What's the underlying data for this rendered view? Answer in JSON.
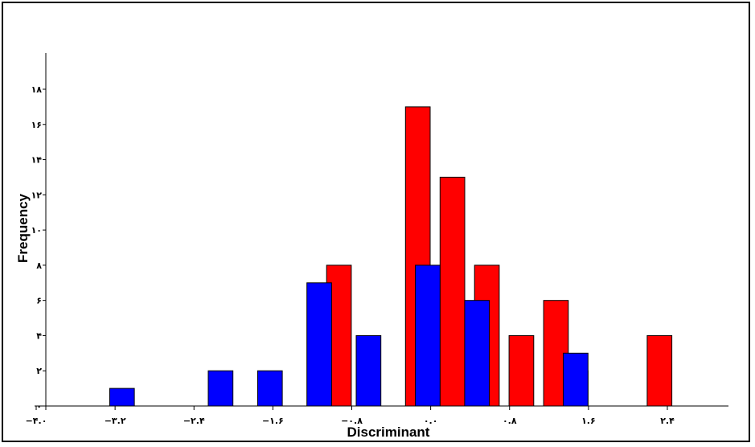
{
  "chart_data": {
    "type": "bar",
    "title": "",
    "xlabel": "Discriminant",
    "ylabel": "Frequency",
    "xlim": [
      -4.0,
      3.4
    ],
    "ylim": [
      0,
      18
    ],
    "x_ticks": [
      -4.0,
      -3.2,
      -2.4,
      -1.6,
      -0.8,
      0.0,
      0.8,
      1.6,
      2.4
    ],
    "x_tick_labels": [
      "−۴.۰",
      "−۳.۲",
      "−۲.۴",
      "−۱.۶",
      "−۰.۸",
      "۰.۰",
      "۰.۸",
      "۱.۶",
      "۲.۴"
    ],
    "y_ticks": [
      0,
      2,
      4,
      6,
      8,
      10,
      12,
      14,
      16,
      18
    ],
    "y_tick_labels": [
      "۰",
      "۲",
      "۴",
      "۶",
      "۸",
      "۱۰",
      "۱۲",
      "۱۴",
      "۱۶",
      "۱۸"
    ],
    "bar_width": 0.25,
    "series": [
      {
        "color": "#ff0000",
        "bars": [
          {
            "x": -0.93,
            "value": 8
          },
          {
            "x": -0.13,
            "value": 17
          },
          {
            "x": 0.22,
            "value": 13
          },
          {
            "x": 0.57,
            "value": 8
          },
          {
            "x": 0.92,
            "value": 4
          },
          {
            "x": 1.27,
            "value": 6
          },
          {
            "x": 1.47,
            "value": 2
          },
          {
            "x": 2.32,
            "value": 4
          }
        ]
      },
      {
        "color": "#0000ff",
        "bars": [
          {
            "x": -3.13,
            "value": 1
          },
          {
            "x": -2.13,
            "value": 2
          },
          {
            "x": -1.63,
            "value": 2
          },
          {
            "x": -1.13,
            "value": 7
          },
          {
            "x": -0.63,
            "value": 4
          },
          {
            "x": -0.03,
            "value": 8
          },
          {
            "x": 0.47,
            "value": 6
          },
          {
            "x": 1.47,
            "value": 3
          }
        ]
      }
    ]
  }
}
